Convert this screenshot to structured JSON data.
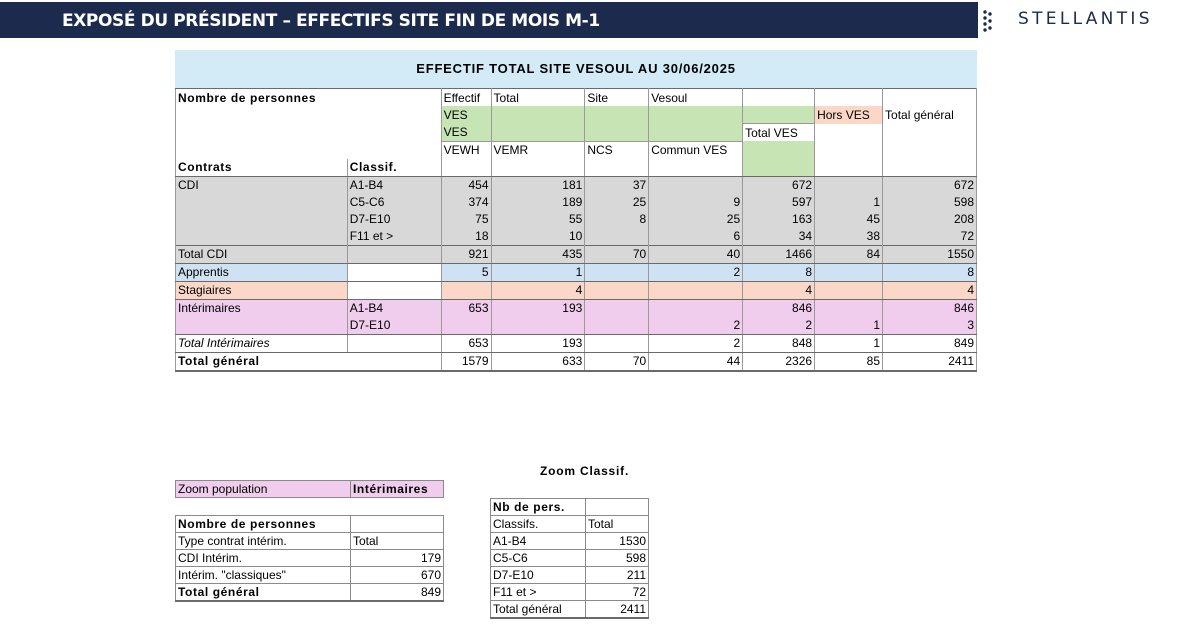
{
  "header": {
    "title": "EXPOSÉ DU PRÉSIDENT – EFFECTIFS SITE FIN DE MOIS M-1",
    "brand": "STELLANTIS",
    "bar_color": "#1c2b4d"
  },
  "main_table": {
    "caption": "EFFECTIF TOTAL SITE VESOUL AU 30/06/2025",
    "row_header": "Nombre de personnes",
    "filters": [
      "Effectif",
      "Total",
      "Site",
      "Vesoul"
    ],
    "level1": "VES",
    "hors_ves": "Hors VES",
    "total_general": "Total général",
    "level2": "VES",
    "total_ves": "Total VES",
    "columns": [
      "VEWH",
      "VEMR",
      "NCS",
      "Commun VES"
    ],
    "col_contrats": "Contrats",
    "col_classif": "Classif.",
    "cdi": {
      "label": "CDI",
      "rows": [
        {
          "classif": "A1-B4",
          "values": [
            "454",
            "181",
            "37",
            "",
            "672",
            "",
            "672"
          ]
        },
        {
          "classif": "C5-C6",
          "values": [
            "374",
            "189",
            "25",
            "9",
            "597",
            "1",
            "598"
          ]
        },
        {
          "classif": "D7-E10",
          "values": [
            "75",
            "55",
            "8",
            "25",
            "163",
            "45",
            "208"
          ]
        },
        {
          "classif": "F11 et >",
          "values": [
            "18",
            "10",
            "",
            "6",
            "34",
            "38",
            "72"
          ]
        }
      ],
      "total_label": "Total CDI",
      "total": [
        "921",
        "435",
        "70",
        "40",
        "1466",
        "84",
        "1550"
      ]
    },
    "apprentis": {
      "label": "Apprentis",
      "values": [
        "5",
        "1",
        "",
        "2",
        "8",
        "",
        "8"
      ]
    },
    "stagiaires": {
      "label": "Stagiaires",
      "values": [
        "",
        "4",
        "",
        "",
        "4",
        "",
        "4"
      ]
    },
    "interimaires": {
      "label": "Intérimaires",
      "rows": [
        {
          "classif": "A1-B4",
          "values": [
            "653",
            "193",
            "",
            "",
            "846",
            "",
            "846"
          ]
        },
        {
          "classif": "D7-E10",
          "values": [
            "",
            "",
            "",
            "2",
            "2",
            "1",
            "3"
          ]
        }
      ],
      "total_label": "Total Intérimaires",
      "total": [
        "653",
        "193",
        "",
        "2",
        "848",
        "1",
        "849"
      ]
    },
    "grand_total_label": "Total général",
    "grand_total": [
      "1579",
      "633",
      "70",
      "44",
      "2326",
      "85",
      "2411"
    ]
  },
  "zoom_population": {
    "label": "Zoom population",
    "value": "Intérimaires"
  },
  "interim_table": {
    "header": "Nombre de personnes",
    "subheader": [
      "Type contrat intérim.",
      "Total"
    ],
    "rows": [
      {
        "label": "CDI Intérim.",
        "value": "179"
      },
      {
        "label": "Intérim. \"classiques\"",
        "value": "670"
      }
    ],
    "total_label": "Total général",
    "total": "849"
  },
  "zoom_classif": {
    "title": "Zoom Classif.",
    "header": "Nb de pers.",
    "subheader": [
      "Classifs.",
      "Total"
    ],
    "rows": [
      {
        "label": "A1-B4",
        "value": "1530"
      },
      {
        "label": "C5-C6",
        "value": "598"
      },
      {
        "label": "D7-E10",
        "value": "211"
      },
      {
        "label": "F11 et >",
        "value": "72"
      }
    ],
    "total_label": "Total général",
    "total": "2411"
  }
}
